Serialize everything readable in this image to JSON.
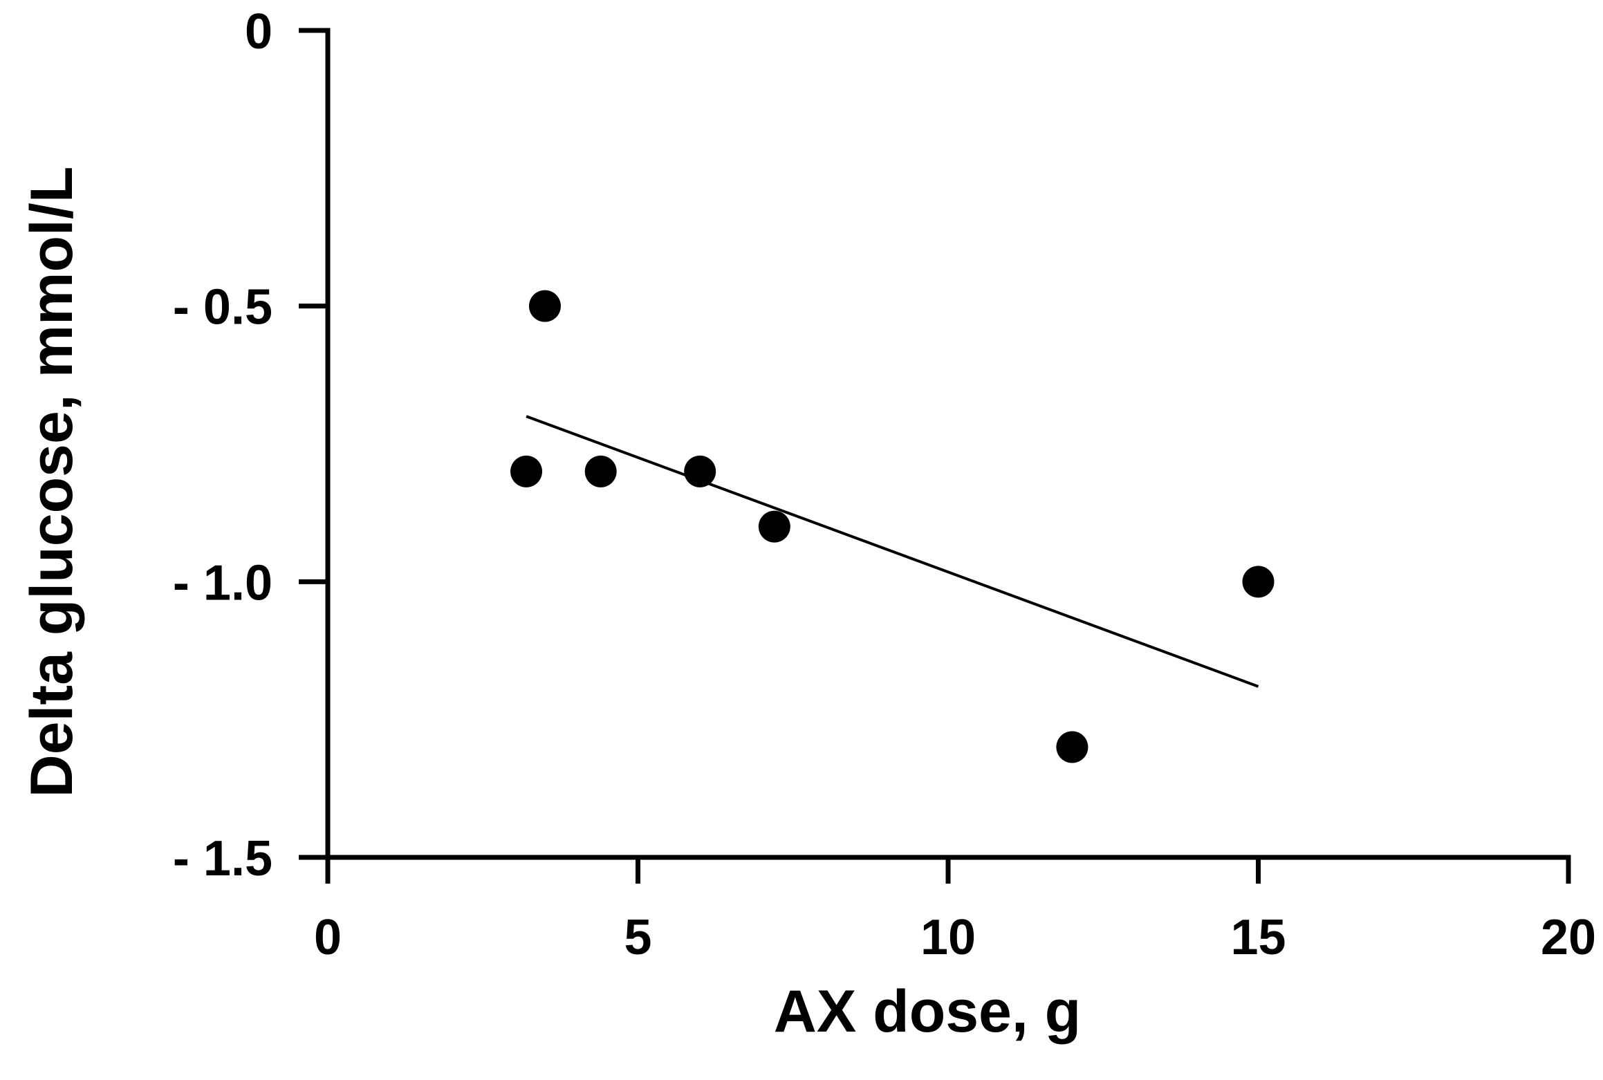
{
  "chart_data": {
    "type": "scatter",
    "title": "",
    "xlabel": "AX dose, g",
    "ylabel": "Delta glucose, mmol/L",
    "xlim": [
      0,
      20
    ],
    "ylim": [
      -1.5,
      0
    ],
    "x_ticks": [
      0,
      5,
      10,
      15,
      20
    ],
    "x_tick_labels": [
      "0",
      "5",
      "10",
      "15",
      "20"
    ],
    "y_ticks": [
      0,
      -0.5,
      -1.0,
      -1.5
    ],
    "y_tick_labels": [
      "0",
      "- 0.5",
      "- 1.0",
      "- 1.5"
    ],
    "grid": false,
    "series": [
      {
        "points": [
          {
            "x": 3.2,
            "y": -0.8
          },
          {
            "x": 3.5,
            "y": -0.5
          },
          {
            "x": 4.4,
            "y": -0.8
          },
          {
            "x": 6.0,
            "y": -0.8
          },
          {
            "x": 7.2,
            "y": -0.9
          },
          {
            "x": 12.0,
            "y": -1.3
          },
          {
            "x": 15.0,
            "y": -1.0
          }
        ]
      }
    ],
    "trendline": {
      "x": [
        3.2,
        15.0
      ],
      "y": [
        -0.7,
        -1.19
      ]
    }
  },
  "colors": {
    "points": "#000000",
    "axes": "#000000",
    "background": "#ffffff"
  }
}
